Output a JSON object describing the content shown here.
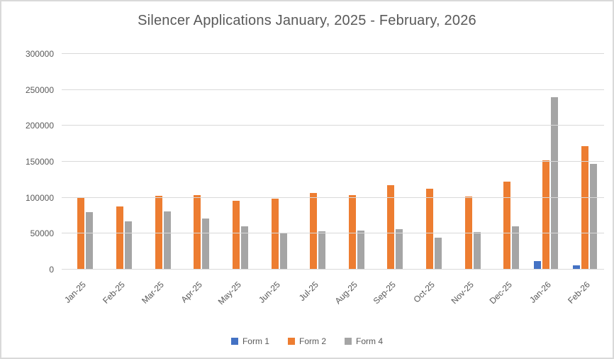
{
  "chart_data": {
    "type": "bar",
    "title": "Silencer Applications January, 2025 - February, 2026",
    "categories": [
      "Jan-25",
      "Feb-25",
      "Mar-25",
      "Apr-25",
      "May-25",
      "Jun-25",
      "Jul-25",
      "Aug-25",
      "Sep-25",
      "Oct-25",
      "Nov-25",
      "Dec-25",
      "Jan-26",
      "Feb-26"
    ],
    "series": [
      {
        "name": "Form 1",
        "color": "#4472C4",
        "values": [
          0,
          0,
          0,
          0,
          0,
          0,
          0,
          0,
          0,
          0,
          0,
          0,
          12000,
          5500
        ]
      },
      {
        "name": "Form 2",
        "color": "#ED7D31",
        "values": [
          101000,
          88000,
          103000,
          104000,
          96000,
          99000,
          107000,
          104000,
          117000,
          113000,
          102000,
          122000,
          152000,
          172000
        ]
      },
      {
        "name": "Form 4",
        "color": "#A5A5A5",
        "values": [
          80000,
          67000,
          81000,
          71000,
          60000,
          50000,
          53000,
          54000,
          56000,
          44000,
          52000,
          60000,
          240000,
          147000
        ]
      }
    ],
    "xlabel": "",
    "ylabel": "",
    "ylim": [
      0,
      300000
    ],
    "ytick_step": 50000,
    "yticks": [
      "0",
      "50000",
      "100000",
      "150000",
      "200000",
      "250000",
      "300000"
    ],
    "grid": true,
    "legend_position": "bottom",
    "colors": {
      "gridline": "#d9d9d9",
      "axis_text": "#595959",
      "title_text": "#595959",
      "background": "#ffffff",
      "border": "#d9d9d9"
    }
  }
}
